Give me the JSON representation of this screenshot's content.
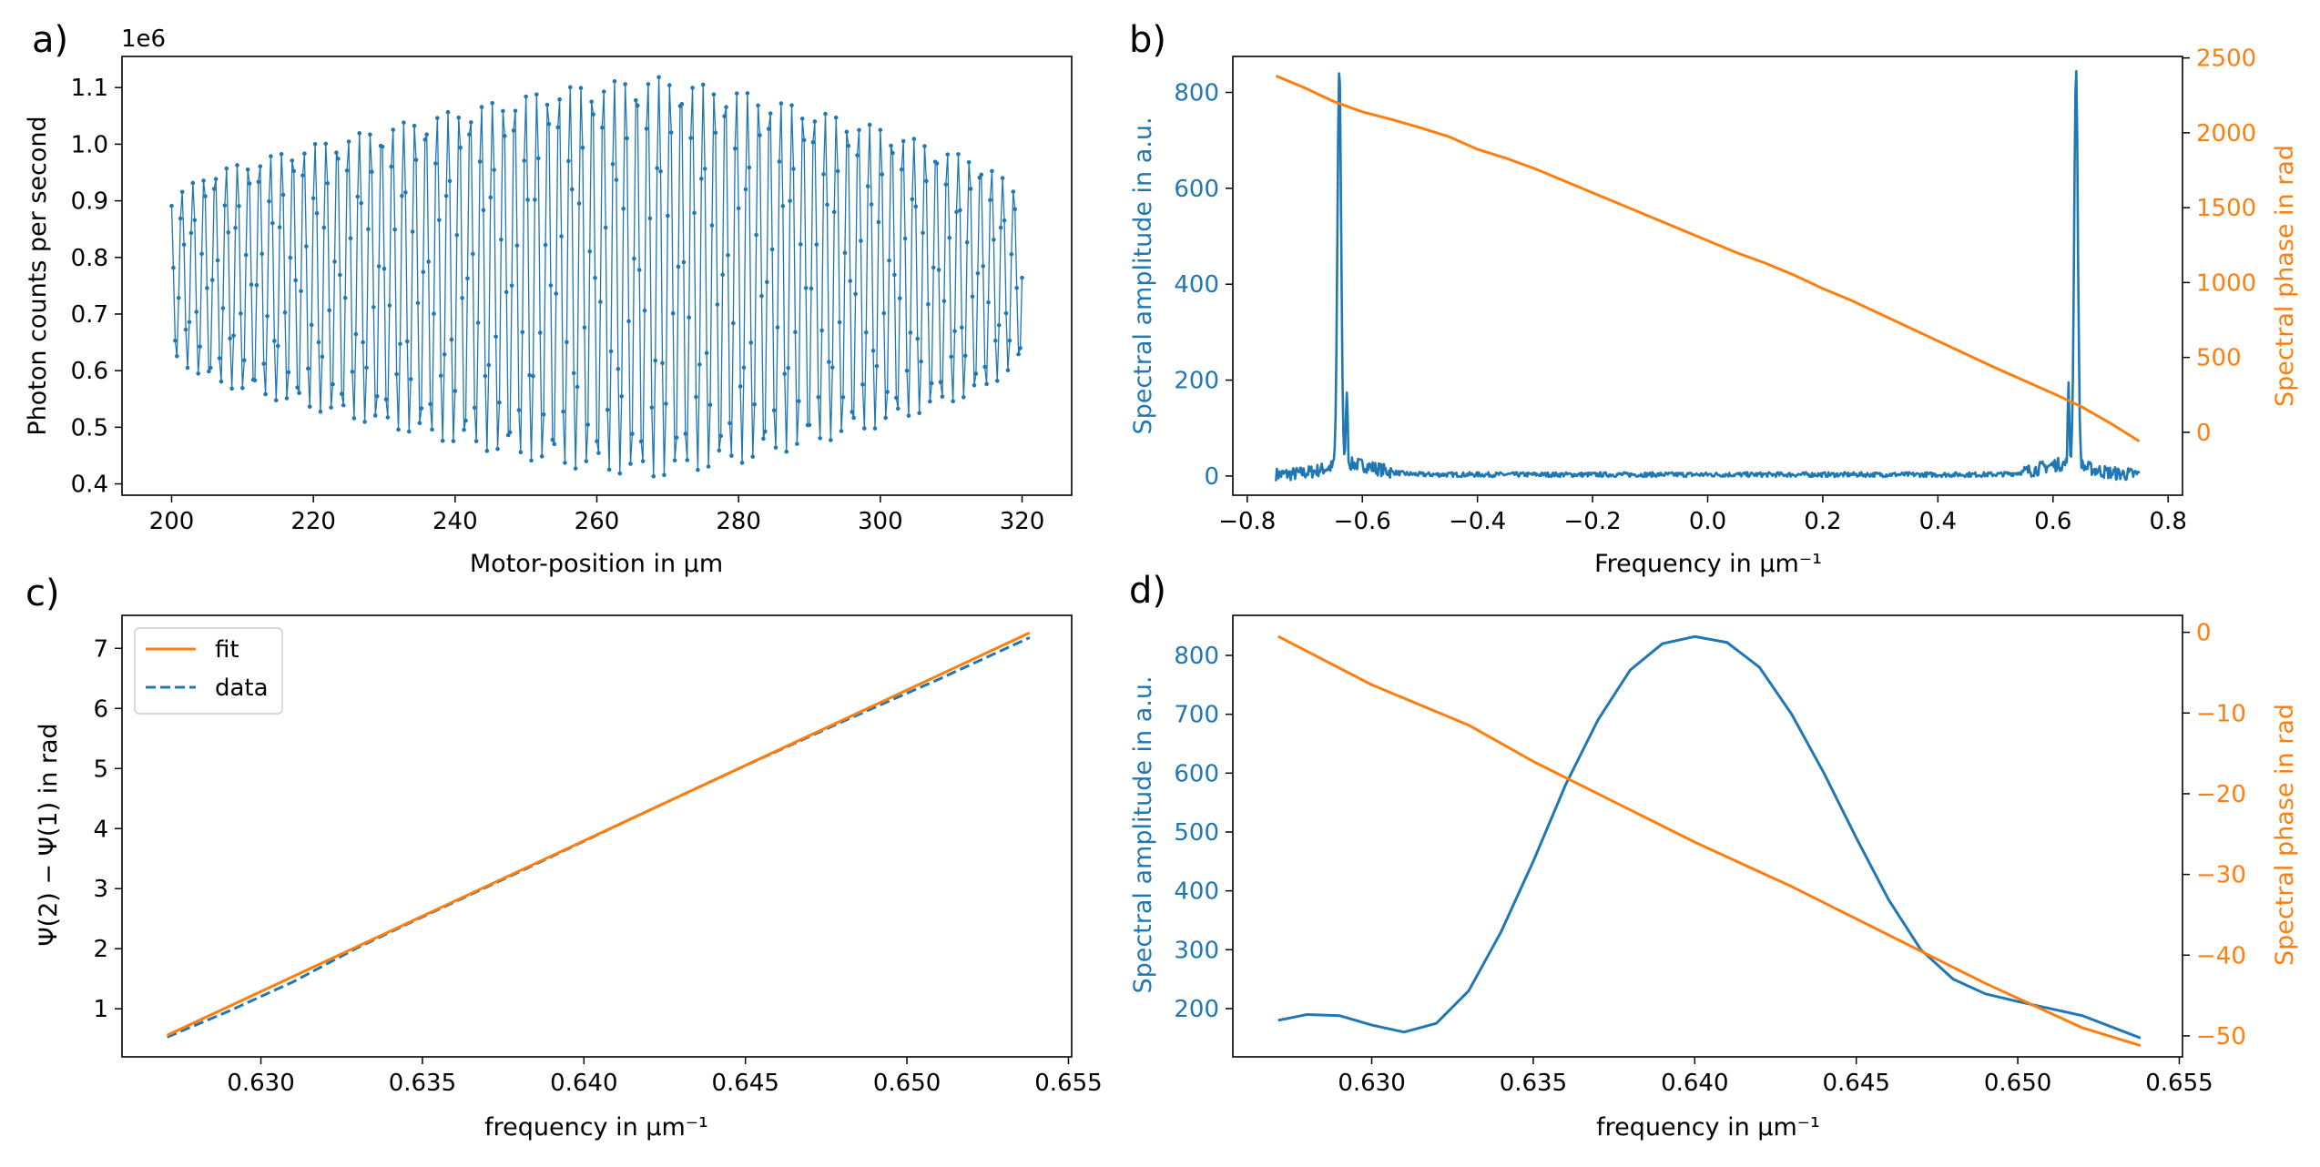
{
  "chart_data": [
    {
      "panel": "a)",
      "type": "line",
      "xlabel": "Motor-position in μm",
      "ylabel": "Photon counts per second",
      "y_scale_note": "1e6",
      "xlim": [
        193,
        327
      ],
      "ylim": [
        0.38,
        1.155
      ],
      "xticks": [
        200,
        220,
        240,
        260,
        280,
        300,
        320
      ],
      "yticks": [
        0.4,
        0.5,
        0.6,
        0.7,
        0.8,
        0.9,
        1.0,
        1.1
      ],
      "ytick_labels": [
        "0.4",
        "0.5",
        "0.6",
        "0.7",
        "0.8",
        "0.9",
        "1.0",
        "1.1"
      ],
      "grid": false,
      "colors": {
        "data": "#1f77b4"
      },
      "series": [
        {
          "description": "interferogram with markers, ~1.57 um period, envelope widest near 265 um",
          "x_range": [
            200,
            320
          ],
          "point_spacing": 0.25,
          "period": 1.565,
          "mean": 0.765,
          "envelope_amplitude": [
            {
              "x": 200,
              "a": 0.14
            },
            {
              "x": 205,
              "a": 0.185
            },
            {
              "x": 220,
              "a": 0.235
            },
            {
              "x": 240,
              "a": 0.295
            },
            {
              "x": 255,
              "a": 0.335
            },
            {
              "x": 268,
              "a": 0.355
            },
            {
              "x": 280,
              "a": 0.33
            },
            {
              "x": 300,
              "a": 0.265
            },
            {
              "x": 315,
              "a": 0.2
            },
            {
              "x": 320,
              "a": 0.145
            }
          ]
        }
      ]
    },
    {
      "panel": "b)",
      "type": "line",
      "xlabel": "Frequency in μm⁻¹",
      "ylabel": "Spectral amplitude in a.u.",
      "ylabel_right": "Spectral phase in rad",
      "xlim": [
        -0.825,
        0.825
      ],
      "ylim": [
        -40,
        875
      ],
      "ylim_right": [
        -420,
        2510
      ],
      "xticks": [
        -0.8,
        -0.6,
        -0.4,
        -0.2,
        0.0,
        0.2,
        0.4,
        0.6,
        0.8
      ],
      "xtick_labels": [
        "−0.8",
        "−0.6",
        "−0.4",
        "−0.2",
        "0.0",
        "0.2",
        "0.4",
        "0.6",
        "0.8"
      ],
      "yticks": [
        0,
        200,
        400,
        600,
        800
      ],
      "yticks_right": [
        0,
        500,
        1000,
        1500,
        2000,
        2500
      ],
      "grid": false,
      "colors": {
        "amplitude": "#1f77b4",
        "phase": "#ff7f0e"
      },
      "series": [
        {
          "role": "amplitude",
          "x_range": [
            -0.75,
            0.75
          ],
          "baseline": 3,
          "peaks": [
            {
              "center": -0.64,
              "height": 830,
              "width": 0.0045
            },
            {
              "center": 0.64,
              "height": 830,
              "width": 0.0045
            }
          ],
          "side_bumps": [
            {
              "center": -0.627,
              "height": 160,
              "width": 0.002
            },
            {
              "center": 0.627,
              "height": 160,
              "width": 0.002
            }
          ]
        },
        {
          "role": "phase",
          "x": [
            -0.75,
            -0.7,
            -0.65,
            -0.6,
            -0.55,
            -0.5,
            -0.45,
            -0.4,
            -0.35,
            -0.3,
            -0.25,
            -0.2,
            -0.15,
            -0.1,
            -0.05,
            0.0,
            0.05,
            0.1,
            0.15,
            0.2,
            0.25,
            0.3,
            0.35,
            0.4,
            0.45,
            0.5,
            0.55,
            0.6,
            0.65,
            0.7,
            0.75
          ],
          "y": [
            2380,
            2300,
            2210,
            2140,
            2090,
            2035,
            1975,
            1890,
            1830,
            1760,
            1680,
            1600,
            1520,
            1440,
            1360,
            1280,
            1200,
            1130,
            1050,
            960,
            880,
            790,
            700,
            610,
            520,
            430,
            345,
            260,
            170,
            60,
            -60
          ]
        }
      ]
    },
    {
      "panel": "c)",
      "type": "line",
      "xlabel": "frequency in μm⁻¹",
      "ylabel": "Ψ(2) − Ψ(1) in rad",
      "xlim": [
        0.6257,
        0.6551
      ],
      "ylim": [
        0.2,
        7.55
      ],
      "xticks": [
        0.63,
        0.635,
        0.64,
        0.645,
        0.65,
        0.655
      ],
      "xtick_labels": [
        "0.630",
        "0.635",
        "0.640",
        "0.645",
        "0.650",
        "0.655"
      ],
      "yticks": [
        1,
        2,
        3,
        4,
        5,
        6,
        7
      ],
      "grid": false,
      "legend_placement": "top-left",
      "colors": {
        "fit": "#ff7f0e",
        "data": "#1f77b4"
      },
      "series": [
        {
          "name": "fit",
          "style": "solid",
          "x": [
            0.6271,
            0.6538
          ],
          "y": [
            0.56,
            7.26
          ]
        },
        {
          "name": "data",
          "style": "dashed",
          "x": [
            0.6271,
            0.629,
            0.631,
            0.633,
            0.635,
            0.638,
            0.64,
            0.642,
            0.645,
            0.648,
            0.651,
            0.6538
          ],
          "y": [
            0.53,
            0.96,
            1.45,
            2.02,
            2.53,
            3.28,
            3.79,
            4.3,
            5.05,
            5.78,
            6.49,
            7.18
          ]
        }
      ]
    },
    {
      "panel": "d)",
      "type": "line",
      "xlabel": "frequency in μm⁻¹",
      "ylabel": "Spectral amplitude in a.u.",
      "ylabel_right": "Spectral phase in rad",
      "xlim": [
        0.6257,
        0.6551
      ],
      "ylim": [
        118,
        868
      ],
      "ylim_right": [
        -52.6,
        2.1
      ],
      "xticks": [
        0.63,
        0.635,
        0.64,
        0.645,
        0.65,
        0.655
      ],
      "xtick_labels": [
        "0.630",
        "0.635",
        "0.640",
        "0.645",
        "0.650",
        "0.655"
      ],
      "yticks": [
        200,
        300,
        400,
        500,
        600,
        700,
        800
      ],
      "yticks_right": [
        0,
        -10,
        -20,
        -30,
        -40,
        -50
      ],
      "ytick_right_labels": [
        "0",
        "−10",
        "−20",
        "−30",
        "−40",
        "−50"
      ],
      "grid": false,
      "colors": {
        "amplitude": "#1f77b4",
        "phase": "#ff7f0e"
      },
      "series": [
        {
          "role": "amplitude",
          "x": [
            0.6271,
            0.628,
            0.629,
            0.63,
            0.631,
            0.632,
            0.633,
            0.634,
            0.635,
            0.636,
            0.637,
            0.638,
            0.639,
            0.64,
            0.641,
            0.642,
            0.643,
            0.644,
            0.645,
            0.646,
            0.647,
            0.648,
            0.649,
            0.65,
            0.651,
            0.652,
            0.6538
          ],
          "y": [
            180,
            190,
            188,
            172,
            160,
            175,
            230,
            330,
            450,
            580,
            690,
            775,
            820,
            832,
            822,
            780,
            700,
            600,
            490,
            385,
            300,
            250,
            225,
            212,
            200,
            188,
            150
          ]
        },
        {
          "role": "phase",
          "x": [
            0.6271,
            0.63,
            0.633,
            0.635,
            0.638,
            0.64,
            0.643,
            0.646,
            0.649,
            0.652,
            0.6538
          ],
          "y": [
            -0.5,
            -6.5,
            -11.5,
            -16.0,
            -22.0,
            -26.0,
            -31.5,
            -37.5,
            -43.5,
            -49.0,
            -51.2
          ]
        }
      ]
    }
  ]
}
